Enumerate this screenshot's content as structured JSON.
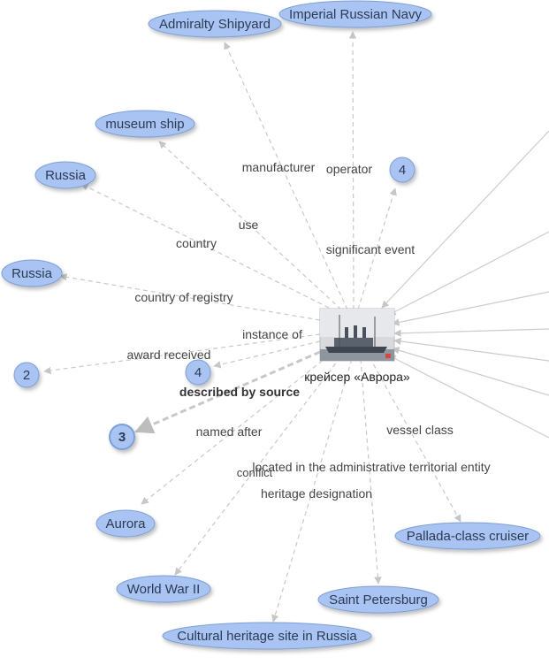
{
  "center": {
    "label": "крейсер «Аврора»"
  },
  "nodes": {
    "admiralty": "Admiralty Shipyard",
    "navy": "Imperial Russian Navy",
    "museum": "museum ship",
    "russia1": "Russia",
    "russia2": "Russia",
    "count2": "2",
    "count4a": "4",
    "count4b": "4",
    "count3": "3",
    "aurora": "Aurora",
    "ww2": "World War II",
    "heritage": "Cultural heritage site in Russia",
    "spb": "Saint Petersburg",
    "pallada": "Pallada-class cruiser"
  },
  "edges": {
    "manufacturer": "manufacturer",
    "operator": "operator",
    "use": "use",
    "country": "country",
    "significant_event": "significant event",
    "country_of_registry": "country of registry",
    "instance_of": "instance of",
    "award_received": "award received",
    "described_by_source": "described by source",
    "named_after": "named after",
    "vessel_class": "vessel class",
    "located_in": "located in the administrative territorial entity",
    "conflict": "conflict",
    "heritage_designation": "heritage designation"
  },
  "colors": {
    "node_fill": "#a9c4f2",
    "node_stroke": "#7d9fd6",
    "edge": "#c8c8c8",
    "edge_incoming": "#cccccc"
  },
  "icons": {
    "center_image": "cruiser-aurora-photo"
  }
}
